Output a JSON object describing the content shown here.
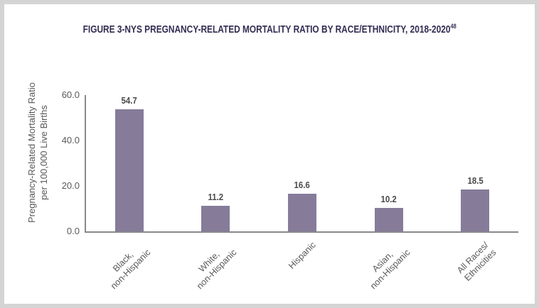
{
  "figure": {
    "title": "FIGURE 3-NYS PREGNANCY-RELATED MORTALITY RATIO BY RACE/ETHNICITY, 2018-2020",
    "title_superscript": "48"
  },
  "chart_data": {
    "type": "bar",
    "title": "FIGURE 3-NYS PREGNANCY-RELATED MORTALITY RATIO BY RACE/ETHNICITY, 2018-2020",
    "title_footnote_marker": "48",
    "categories": [
      "Black,\nnon-Hispanic",
      "White,\nnon-Hispanic",
      "Hispanic",
      "Asian,\nnon-Hispanic",
      "All Races/\nEthnicities"
    ],
    "values": [
      54.7,
      11.2,
      16.6,
      10.2,
      18.5
    ],
    "value_labels": [
      "54.7",
      "11.2",
      "16.6",
      "10.2",
      "18.5"
    ],
    "xlabel": "",
    "ylabel": "Pregnancy-Related Mortality Ratio per 100,000 Live Births",
    "ylabel_lines": [
      "Pregnancy-Related Mortality Ratio",
      "per 100,000 Live Births"
    ],
    "ylim": [
      0,
      60
    ],
    "yticks": [
      0,
      20,
      40,
      60
    ],
    "ytick_labels": [
      "0.0",
      "20.0",
      "40.0",
      "60.0"
    ],
    "grid": false,
    "legend": null,
    "bar_color": "#867C99",
    "axis_line_color": "#87898C",
    "tick_text_color": "#58595B",
    "value_label_color": "#4A4A4C",
    "title_color": "#332C52",
    "frame_border_color": "#D4D4D4"
  }
}
